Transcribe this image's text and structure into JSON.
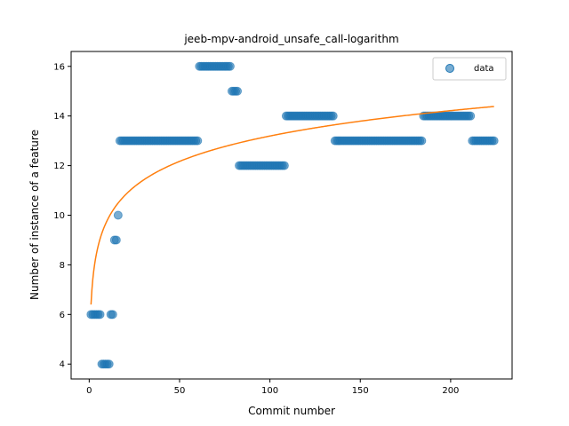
{
  "chart_data": {
    "type": "scatter",
    "title": "jeeb-mpv-android_unsafe_call-logarithm",
    "xlabel": "Commit number",
    "ylabel": "Number of instance of a feature",
    "xlim": [
      -10,
      234
    ],
    "ylim": [
      3.4,
      16.6
    ],
    "xticks": [
      0,
      50,
      100,
      150,
      200
    ],
    "yticks": [
      4,
      6,
      8,
      10,
      12,
      14,
      16
    ],
    "grid": false,
    "legend": {
      "placement": "top-right",
      "entries": [
        "data"
      ]
    },
    "colors": {
      "data": "#1f77b4",
      "fit": "#ff7f0e"
    },
    "series": [
      {
        "name": "data",
        "kind": "scatter",
        "runs": [
          {
            "x_start": 1,
            "x_end": 6,
            "y": 6
          },
          {
            "x_start": 7,
            "x_end": 11,
            "y": 4
          },
          {
            "x_start": 12,
            "x_end": 13,
            "y": 6
          },
          {
            "x_start": 14,
            "x_end": 15,
            "y": 9
          },
          {
            "x_start": 16,
            "x_end": 16,
            "y": 10
          },
          {
            "x_start": 17,
            "x_end": 60,
            "y": 13
          },
          {
            "x_start": 61,
            "x_end": 78,
            "y": 16
          },
          {
            "x_start": 79,
            "x_end": 82,
            "y": 15
          },
          {
            "x_start": 83,
            "x_end": 108,
            "y": 12
          },
          {
            "x_start": 109,
            "x_end": 135,
            "y": 14
          },
          {
            "x_start": 136,
            "x_end": 184,
            "y": 13
          },
          {
            "x_start": 185,
            "x_end": 211,
            "y": 14
          },
          {
            "x_start": 212,
            "x_end": 224,
            "y": 13
          }
        ]
      },
      {
        "kind": "line",
        "fit": {
          "model": "logarithmic",
          "a": 6.4,
          "b": 1.475,
          "x_start": 1,
          "x_end": 224
        }
      }
    ]
  }
}
